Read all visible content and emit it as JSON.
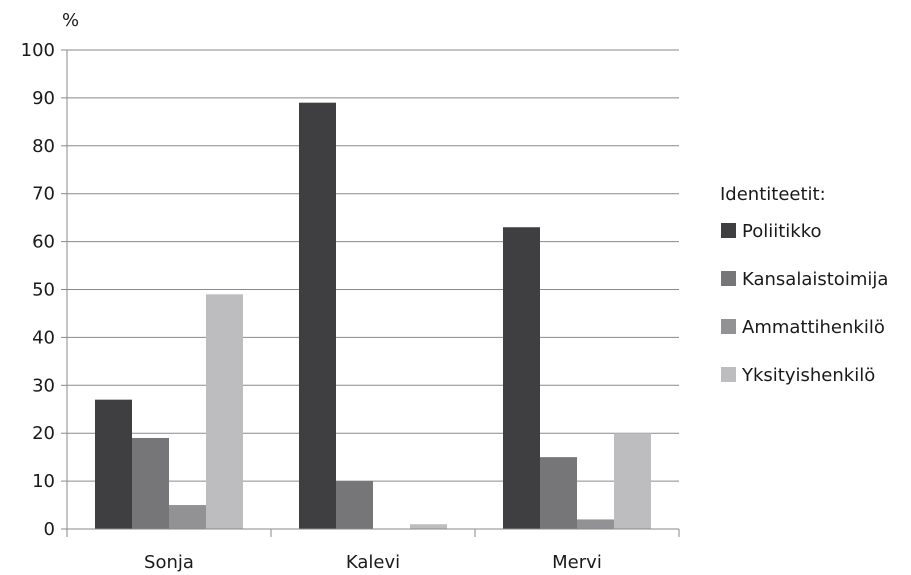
{
  "chart_data": {
    "type": "bar",
    "ylabel": "%",
    "ylim": [
      0,
      100
    ],
    "yticks": [
      0,
      10,
      20,
      30,
      40,
      50,
      60,
      70,
      80,
      90,
      100
    ],
    "categories": [
      "Sonja",
      "Kalevi",
      "Mervi"
    ],
    "grid": true,
    "legend": {
      "title": "Identiteetit:",
      "placement": "right"
    },
    "series": [
      {
        "name": "Poliitikko",
        "color": "#3f3f41",
        "values": [
          27,
          89,
          63
        ]
      },
      {
        "name": "Kansalaistoimija",
        "color": "#767679",
        "values": [
          19,
          10,
          15
        ]
      },
      {
        "name": "Ammattihenkilö",
        "color": "#929294",
        "values": [
          5,
          0,
          2
        ]
      },
      {
        "name": "Yksityishenkilö",
        "color": "#bdbdbf",
        "values": [
          49,
          1,
          20
        ]
      }
    ]
  }
}
